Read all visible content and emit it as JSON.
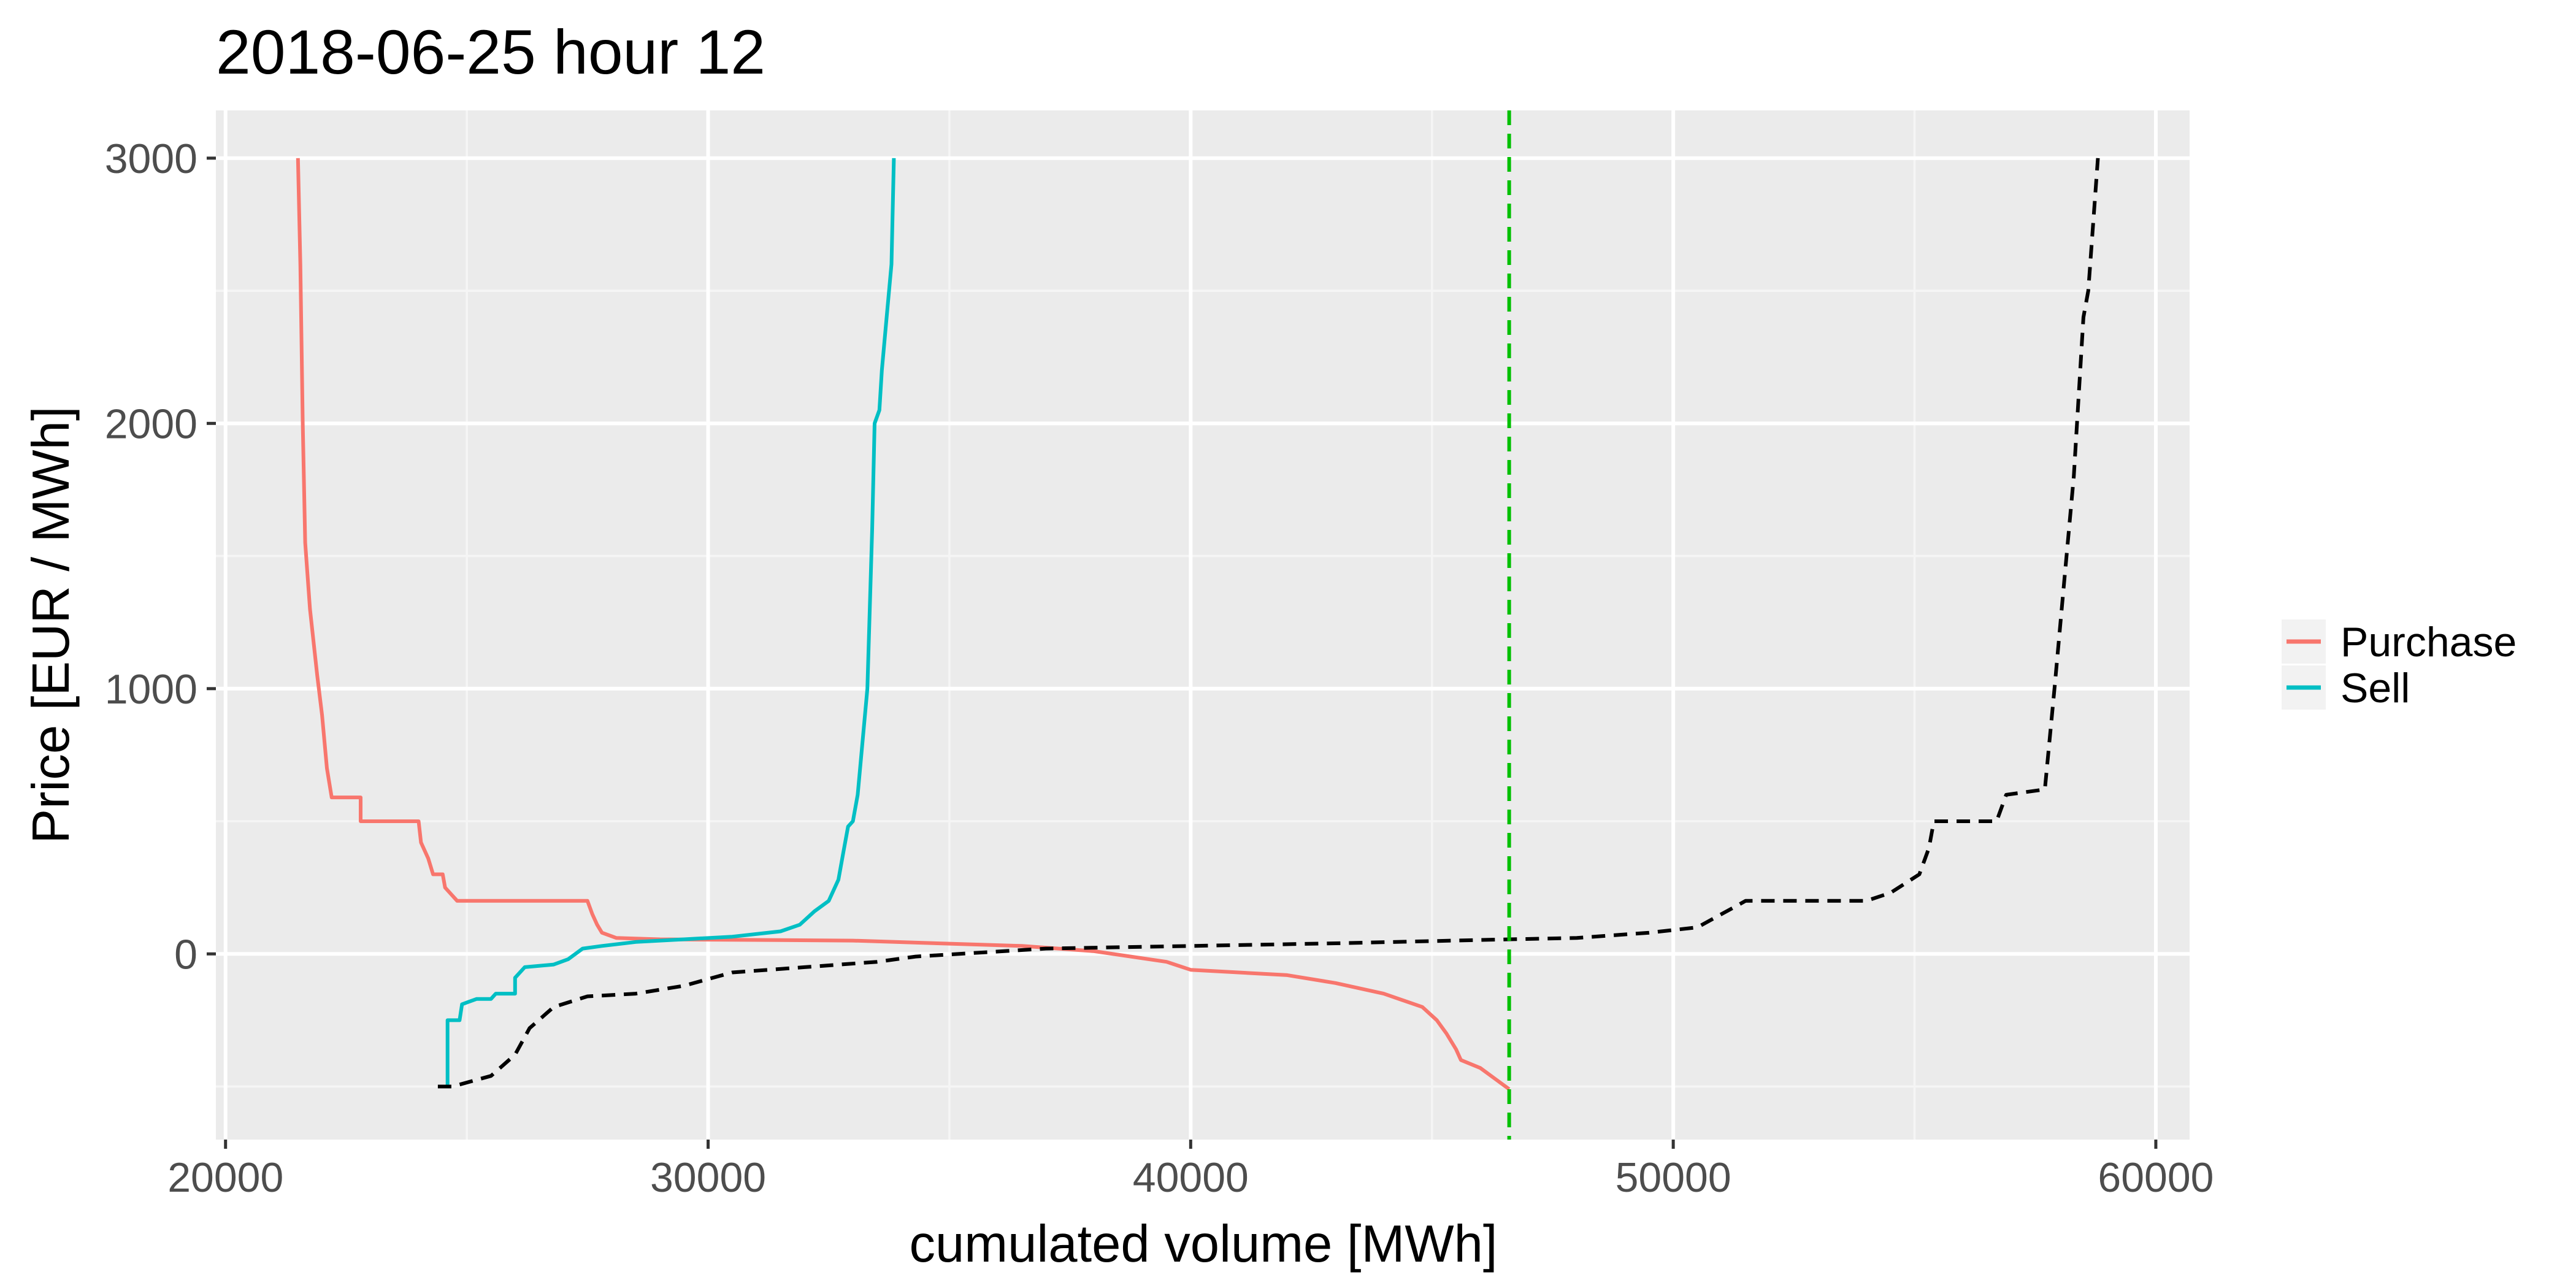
{
  "chart_data": {
    "type": "line",
    "title": "2018-06-25 hour 12",
    "xlabel": "cumulated volume [MWh]",
    "ylabel": "Price [EUR / MWh]",
    "xlim": [
      19800,
      60700
    ],
    "ylim": [
      -700,
      3180
    ],
    "x_ticks": [
      20000,
      30000,
      40000,
      50000,
      60000
    ],
    "x_tick_labels": [
      "20000",
      "30000",
      "40000",
      "50000",
      "60000"
    ],
    "y_ticks": [
      0,
      1000,
      2000,
      3000
    ],
    "y_tick_labels": [
      "0",
      "1000",
      "2000",
      "3000"
    ],
    "grid": true,
    "legend_position": "right",
    "series": [
      {
        "name": "Purchase",
        "color": "#F8766D",
        "dash": "solid",
        "points": [
          [
            21500,
            3000
          ],
          [
            21550,
            2600
          ],
          [
            21600,
            2000
          ],
          [
            21650,
            1550
          ],
          [
            21750,
            1300
          ],
          [
            21900,
            1050
          ],
          [
            22000,
            900
          ],
          [
            22100,
            700
          ],
          [
            22200,
            590
          ],
          [
            22800,
            590
          ],
          [
            22800,
            500
          ],
          [
            24000,
            500
          ],
          [
            24050,
            420
          ],
          [
            24200,
            360
          ],
          [
            24300,
            300
          ],
          [
            24500,
            300
          ],
          [
            24550,
            250
          ],
          [
            24700,
            220
          ],
          [
            24800,
            200
          ],
          [
            27500,
            200
          ],
          [
            27600,
            150
          ],
          [
            27700,
            110
          ],
          [
            27800,
            80
          ],
          [
            28100,
            60
          ],
          [
            29000,
            55
          ],
          [
            33000,
            50
          ],
          [
            36500,
            30
          ],
          [
            38000,
            10
          ],
          [
            39500,
            -30
          ],
          [
            40000,
            -60
          ],
          [
            42000,
            -80
          ],
          [
            43000,
            -110
          ],
          [
            44000,
            -150
          ],
          [
            44800,
            -200
          ],
          [
            45100,
            -250
          ],
          [
            45300,
            -300
          ],
          [
            45500,
            -360
          ],
          [
            45600,
            -400
          ],
          [
            46000,
            -430
          ],
          [
            46300,
            -470
          ],
          [
            46600,
            -510
          ]
        ]
      },
      {
        "name": "Sell",
        "color": "#00BFC4",
        "dash": "solid",
        "points": [
          [
            24600,
            -500
          ],
          [
            24600,
            -250
          ],
          [
            24850,
            -250
          ],
          [
            24900,
            -190
          ],
          [
            25200,
            -170
          ],
          [
            25500,
            -170
          ],
          [
            25600,
            -150
          ],
          [
            26000,
            -150
          ],
          [
            26000,
            -90
          ],
          [
            26200,
            -50
          ],
          [
            26800,
            -40
          ],
          [
            27100,
            -20
          ],
          [
            27400,
            20
          ],
          [
            27800,
            30
          ],
          [
            28500,
            45
          ],
          [
            29500,
            55
          ],
          [
            30500,
            65
          ],
          [
            31500,
            85
          ],
          [
            31900,
            110
          ],
          [
            32200,
            160
          ],
          [
            32500,
            200
          ],
          [
            32700,
            280
          ],
          [
            32800,
            380
          ],
          [
            32900,
            480
          ],
          [
            33000,
            500
          ],
          [
            33100,
            600
          ],
          [
            33300,
            1000
          ],
          [
            33400,
            1600
          ],
          [
            33450,
            2000
          ],
          [
            33550,
            2050
          ],
          [
            33600,
            2200
          ],
          [
            33700,
            2400
          ],
          [
            33800,
            2600
          ],
          [
            33850,
            3000
          ]
        ]
      },
      {
        "color": "#000000",
        "dash": "dashed",
        "points": [
          [
            24400,
            -500
          ],
          [
            24700,
            -500
          ],
          [
            25500,
            -460
          ],
          [
            26000,
            -380
          ],
          [
            26300,
            -280
          ],
          [
            26800,
            -200
          ],
          [
            27500,
            -160
          ],
          [
            28500,
            -150
          ],
          [
            29500,
            -120
          ],
          [
            30500,
            -70
          ],
          [
            32000,
            -50
          ],
          [
            33500,
            -30
          ],
          [
            34300,
            -10
          ],
          [
            37000,
            20
          ],
          [
            40000,
            30
          ],
          [
            43000,
            40
          ],
          [
            46600,
            55
          ],
          [
            48000,
            60
          ],
          [
            49500,
            80
          ],
          [
            50500,
            100
          ],
          [
            51000,
            150
          ],
          [
            51500,
            200
          ],
          [
            54000,
            200
          ],
          [
            54500,
            230
          ],
          [
            55100,
            300
          ],
          [
            55300,
            400
          ],
          [
            55400,
            500
          ],
          [
            56700,
            500
          ],
          [
            56900,
            600
          ],
          [
            57700,
            620
          ],
          [
            57900,
            1000
          ],
          [
            58100,
            1400
          ],
          [
            58300,
            1800
          ],
          [
            58500,
            2400
          ],
          [
            58600,
            2500
          ],
          [
            58800,
            3000
          ]
        ]
      }
    ],
    "annotations": [
      {
        "type": "vline",
        "x": 46600,
        "color": "#00C000",
        "dash": "dashed"
      }
    ]
  },
  "legend": [
    {
      "label": "Purchase",
      "color": "#F8766D"
    },
    {
      "label": "Sell",
      "color": "#00BFC4"
    }
  ],
  "colors": {
    "panel_background": "#EBEBEB",
    "grid_major": "#FFFFFF",
    "grid_minor": "#F5F5F5",
    "tick_text": "#4D4D4D"
  }
}
